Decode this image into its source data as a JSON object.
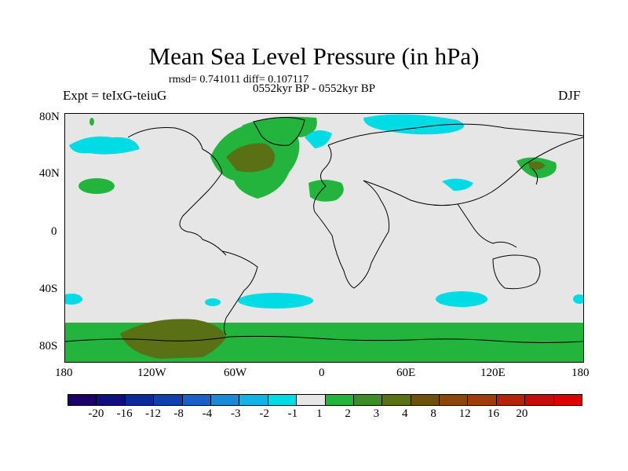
{
  "title": "Mean Sea Level Pressure (in hPa)",
  "stats": "rmsd= 0.741011 diff= 0.107117",
  "experiment": "Expt = teIxG-teiuG",
  "period": "0552kyr BP - 0552kyr BP",
  "season": "DJF",
  "map": {
    "lat_ticks": [
      "80N",
      "40N",
      "0",
      "40S",
      "80S"
    ],
    "lon_ticks": [
      "180",
      "120W",
      "60W",
      "0",
      "60E",
      "120E",
      "180"
    ]
  },
  "colorbar": {
    "colors": [
      "#1a0066",
      "#0f0f80",
      "#0a2a9a",
      "#1040b0",
      "#1a60c8",
      "#1a8ad8",
      "#10b4e6",
      "#00dce6",
      "#e6e6e6",
      "#22b43c",
      "#3c8c28",
      "#5a7014",
      "#6e500a",
      "#8c460a",
      "#a03c0a",
      "#b4230a",
      "#c80a0a",
      "#dc0000"
    ],
    "labels": [
      "-20",
      "-16",
      "-12",
      "-8",
      "-4",
      "-3",
      "-2",
      "-1",
      "1",
      "2",
      "3",
      "4",
      "8",
      "12",
      "16",
      "20"
    ]
  }
}
